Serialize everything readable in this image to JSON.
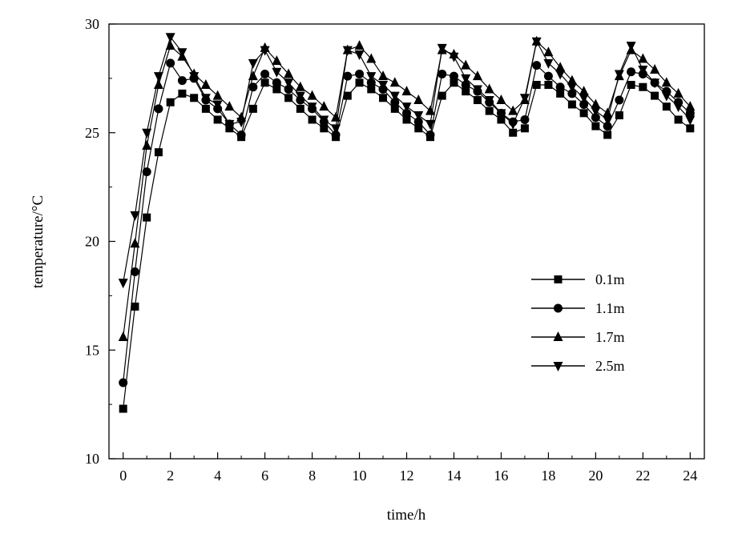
{
  "chart_data": {
    "type": "line",
    "title": "",
    "xlabel": "time/h",
    "ylabel": "temperature/°C",
    "xlim": [
      -0.6,
      24.6
    ],
    "ylim": [
      10,
      30
    ],
    "xticks": [
      "0",
      "2",
      "4",
      "6",
      "8",
      "10",
      "12",
      "14",
      "16",
      "18",
      "20",
      "22",
      "24"
    ],
    "yticks": [
      "10",
      "15",
      "20",
      "25",
      "30"
    ],
    "grid": false,
    "legend_position": "right-center",
    "x": [
      0,
      0.5,
      1,
      1.5,
      2,
      2.5,
      3,
      3.5,
      4,
      4.5,
      5,
      5.5,
      6,
      6.5,
      7,
      7.5,
      8,
      8.5,
      9,
      9.5,
      10,
      10.5,
      11,
      11.5,
      12,
      12.5,
      13,
      13.5,
      14,
      14.5,
      15,
      15.5,
      16,
      16.5,
      17,
      17.5,
      18,
      18.5,
      19,
      19.5,
      20,
      20.5,
      21,
      21.5,
      22,
      22.5,
      23,
      23.5,
      24
    ],
    "series": [
      {
        "name": "0.1m",
        "marker": "square",
        "values": [
          12.3,
          17.0,
          21.1,
          24.1,
          26.4,
          26.8,
          26.6,
          26.1,
          25.6,
          25.2,
          24.8,
          26.1,
          27.3,
          27.0,
          26.6,
          26.1,
          25.6,
          25.2,
          24.8,
          26.7,
          27.3,
          27.0,
          26.6,
          26.1,
          25.6,
          25.2,
          24.8,
          26.7,
          27.3,
          26.9,
          26.5,
          26.0,
          25.6,
          25.0,
          25.2,
          27.2,
          27.2,
          26.8,
          26.3,
          25.9,
          25.3,
          24.9,
          25.8,
          27.2,
          27.1,
          26.7,
          26.2,
          25.6,
          25.2
        ]
      },
      {
        "name": "1.1m",
        "marker": "circle",
        "values": [
          13.5,
          18.6,
          23.2,
          26.1,
          28.2,
          27.4,
          27.5,
          26.5,
          26.1,
          25.4,
          24.9,
          27.1,
          27.7,
          27.3,
          27.0,
          26.5,
          26.1,
          25.5,
          24.9,
          27.6,
          27.7,
          27.3,
          27.0,
          26.4,
          25.9,
          25.5,
          24.9,
          27.7,
          27.6,
          27.2,
          26.9,
          26.4,
          25.9,
          25.5,
          25.6,
          28.1,
          27.6,
          27.1,
          26.8,
          26.3,
          25.7,
          25.3,
          26.5,
          27.8,
          27.7,
          27.3,
          26.9,
          26.4,
          25.9
        ]
      },
      {
        "name": "1.7m",
        "marker": "triangle-up",
        "values": [
          15.6,
          19.9,
          24.4,
          27.2,
          29.0,
          28.5,
          27.7,
          27.2,
          26.7,
          26.2,
          25.7,
          27.6,
          28.9,
          28.3,
          27.7,
          27.1,
          26.7,
          26.2,
          25.7,
          28.8,
          29.0,
          28.4,
          27.6,
          27.3,
          26.9,
          26.5,
          26.0,
          28.8,
          28.6,
          28.1,
          27.6,
          27.0,
          26.5,
          26.0,
          26.5,
          29.2,
          28.7,
          28.0,
          27.4,
          26.9,
          26.3,
          25.9,
          27.6,
          28.8,
          28.4,
          27.9,
          27.3,
          26.8,
          26.2
        ]
      },
      {
        "name": "2.5m",
        "marker": "triangle-down",
        "values": [
          18.1,
          21.2,
          25.0,
          27.6,
          29.4,
          28.7,
          27.6,
          26.6,
          26.3,
          25.4,
          25.5,
          28.2,
          28.8,
          27.8,
          27.3,
          26.7,
          26.2,
          25.6,
          25.2,
          28.8,
          28.6,
          27.6,
          27.2,
          26.7,
          26.2,
          25.8,
          25.4,
          28.9,
          28.5,
          27.5,
          27.0,
          26.5,
          25.9,
          25.4,
          26.6,
          29.2,
          28.2,
          27.7,
          27.1,
          26.6,
          26.0,
          25.6,
          27.7,
          29.0,
          27.9,
          27.3,
          26.7,
          26.2,
          25.6
        ]
      }
    ]
  }
}
